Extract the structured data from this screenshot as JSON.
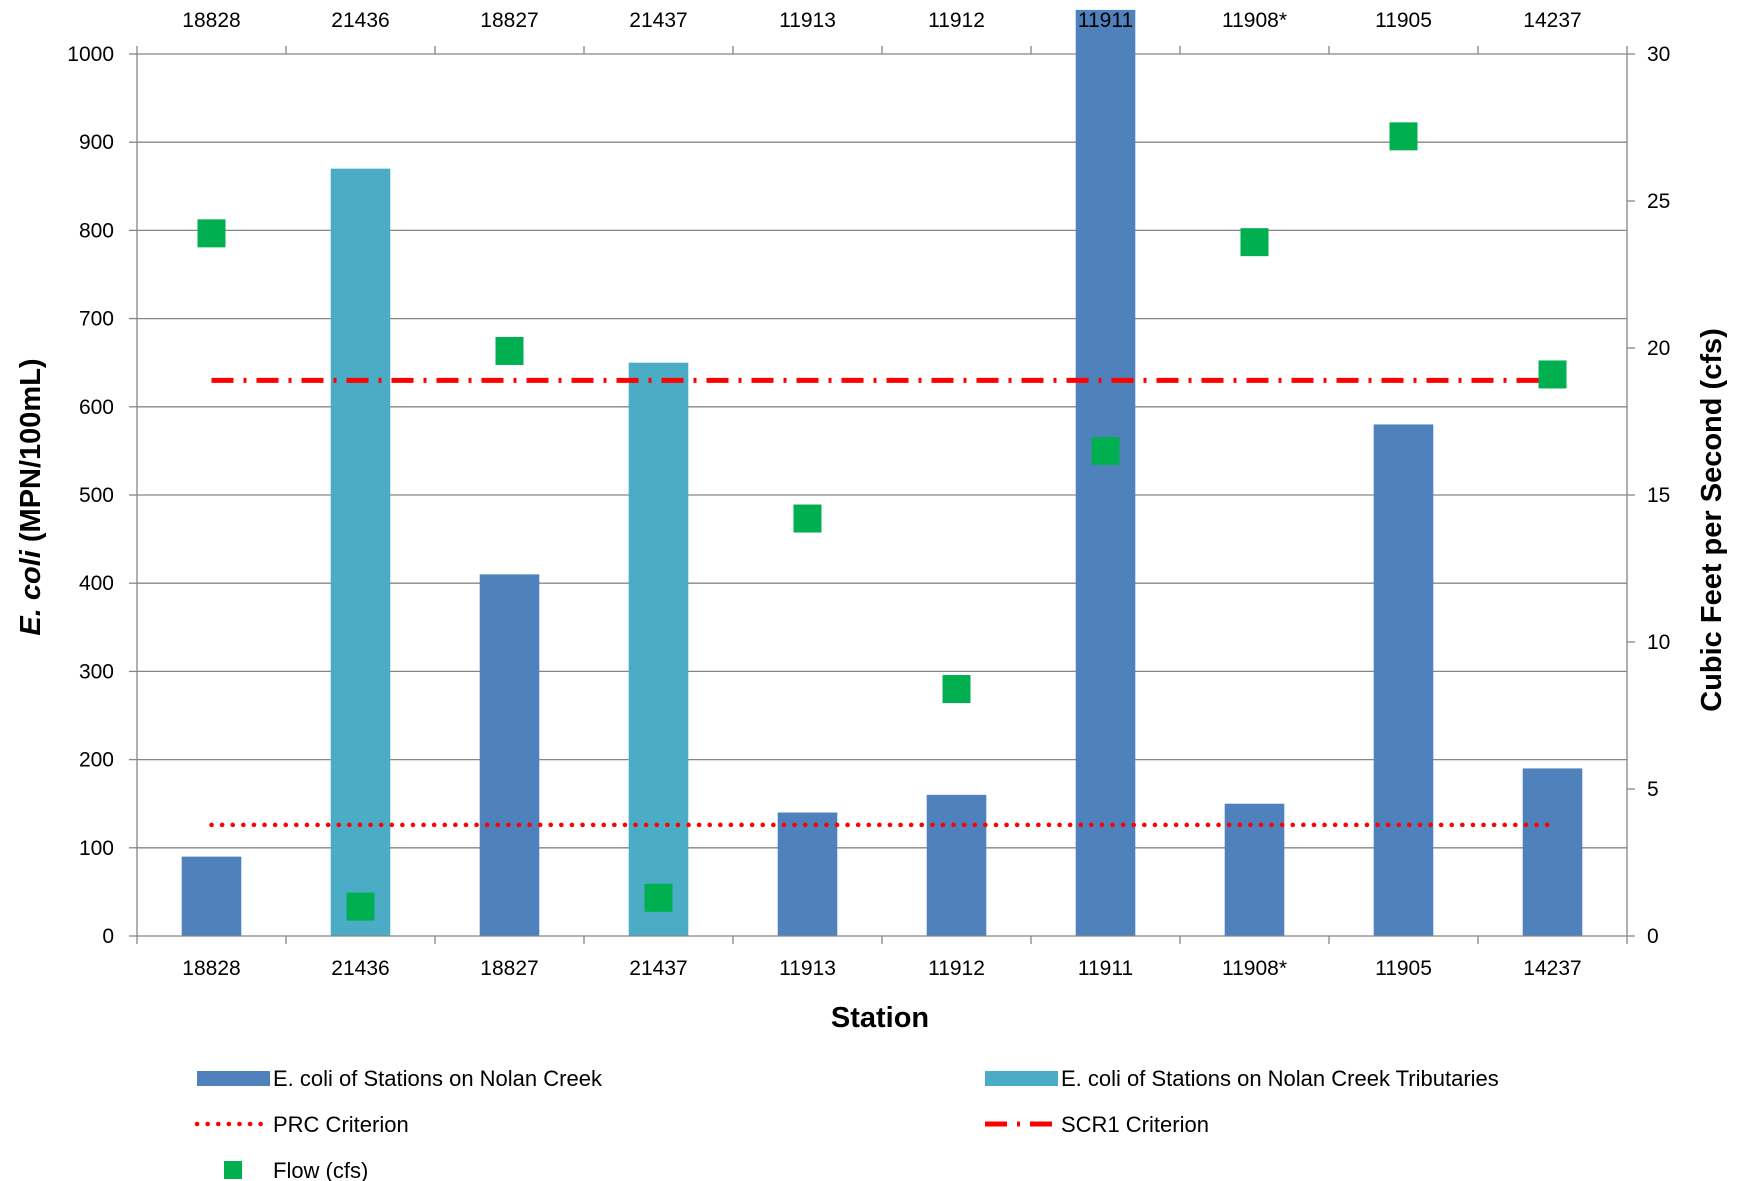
{
  "chart_data": {
    "type": "bar",
    "categories": [
      "18828",
      "21436",
      "18827",
      "21437",
      "11913",
      "11912",
      "11911",
      "11908*",
      "11905",
      "14237"
    ],
    "xlabel": "Station",
    "ylabel": {
      "italic": "E. coli",
      "rest": " (MPN/100mL)"
    },
    "y2label": "Cubic Feet per Second (cfs)",
    "ylim": [
      0,
      1000
    ],
    "y2lim": [
      0,
      30
    ],
    "yticks": [
      "0",
      "100",
      "200",
      "300",
      "400",
      "500",
      "600",
      "700",
      "800",
      "900",
      "1000"
    ],
    "y2ticks": [
      "0",
      "5",
      "10",
      "15",
      "20",
      "25",
      "30"
    ],
    "grid": "horizontal",
    "legend_position": "bottom",
    "series": [
      {
        "name": "E. coli of Stations on Nolan Creek",
        "kind": "bar",
        "axis": "left",
        "color": "#4f81bd",
        "values": [
          90,
          null,
          410,
          null,
          140,
          160,
          1050,
          150,
          580,
          190
        ]
      },
      {
        "name": "E. coli of Stations on Nolan Creek Tributaries",
        "kind": "bar",
        "axis": "left",
        "color": "#4bacc6",
        "values": [
          null,
          870,
          null,
          650,
          null,
          null,
          null,
          null,
          null,
          null
        ]
      },
      {
        "name": "PRC Criterion",
        "kind": "line",
        "style": "dotted",
        "axis": "left",
        "color": "#ff0000",
        "value": 126
      },
      {
        "name": "SCR1 Criterion",
        "kind": "line",
        "style": "dash-dot",
        "axis": "left",
        "color": "#ff0000",
        "value": 630
      },
      {
        "name": "Flow (cfs)",
        "kind": "marker",
        "axis": "right",
        "color": "#00b050",
        "values": [
          23.9,
          1.0,
          19.9,
          1.3,
          14.2,
          8.4,
          16.5,
          23.6,
          27.2,
          19.1
        ]
      }
    ]
  }
}
